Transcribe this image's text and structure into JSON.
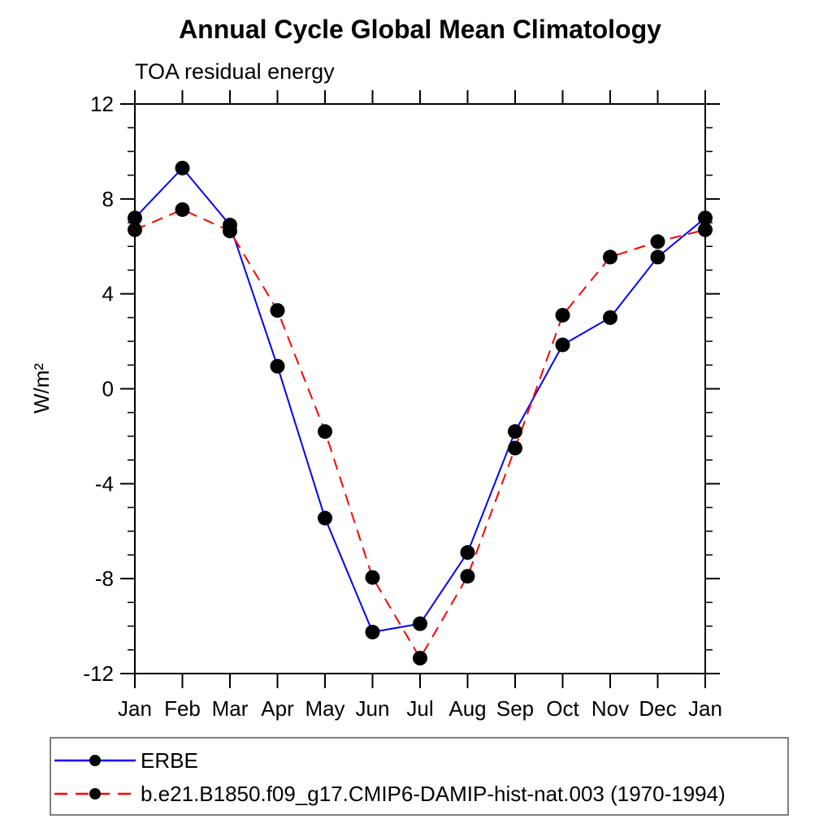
{
  "title": "Annual Cycle Global Mean Climatology",
  "subtitle": "TOA residual energy",
  "ylabel": "W/m²",
  "colors": {
    "background": "#ffffff",
    "axis": "#000000",
    "marker": "#000000",
    "erbe_line": "#0000ff",
    "model_line": "#ff0000",
    "legend_border": "#808080"
  },
  "legend": {
    "position": "bottom",
    "items": [
      {
        "label": "ERBE",
        "color": "#0000ff",
        "line_style": "solid",
        "marker": "filled-circle"
      },
      {
        "label": "b.e21.B1850.f09_g17.CMIP6-DAMIP-hist-nat.003 (1970-1994)",
        "color": "#ff0000",
        "line_style": "dashed",
        "marker": "filled-circle"
      }
    ]
  },
  "chart_data": {
    "type": "line",
    "title": "Annual Cycle Global Mean Climatology",
    "subtitle": "TOA residual energy",
    "xlabel": "",
    "ylabel": "W/m²",
    "categories": [
      "Jan",
      "Feb",
      "Mar",
      "Apr",
      "May",
      "Jun",
      "Jul",
      "Aug",
      "Sep",
      "Oct",
      "Nov",
      "Dec",
      "Jan"
    ],
    "ylim": [
      -12,
      12
    ],
    "yticks_major": [
      -12,
      -8,
      -4,
      0,
      4,
      8,
      12
    ],
    "ytick_minor_step": 1,
    "grid": false,
    "legend_position": "bottom",
    "series": [
      {
        "name": "ERBE",
        "color": "#0000ff",
        "line_style": "solid",
        "marker": "filled-circle",
        "marker_color": "#000000",
        "values": [
          7.2,
          9.3,
          6.9,
          0.95,
          -5.45,
          -10.25,
          -9.9,
          -6.9,
          -1.8,
          1.85,
          3.0,
          5.55,
          7.2
        ]
      },
      {
        "name": "b.e21.B1850.f09_g17.CMIP6-DAMIP-hist-nat.003 (1970-1994)",
        "color": "#ff0000",
        "line_style": "dashed",
        "marker": "filled-circle",
        "marker_color": "#000000",
        "values": [
          6.7,
          7.55,
          6.65,
          3.3,
          -1.8,
          -7.95,
          -11.35,
          -7.9,
          -2.5,
          3.1,
          5.55,
          6.2,
          6.7
        ]
      }
    ]
  }
}
